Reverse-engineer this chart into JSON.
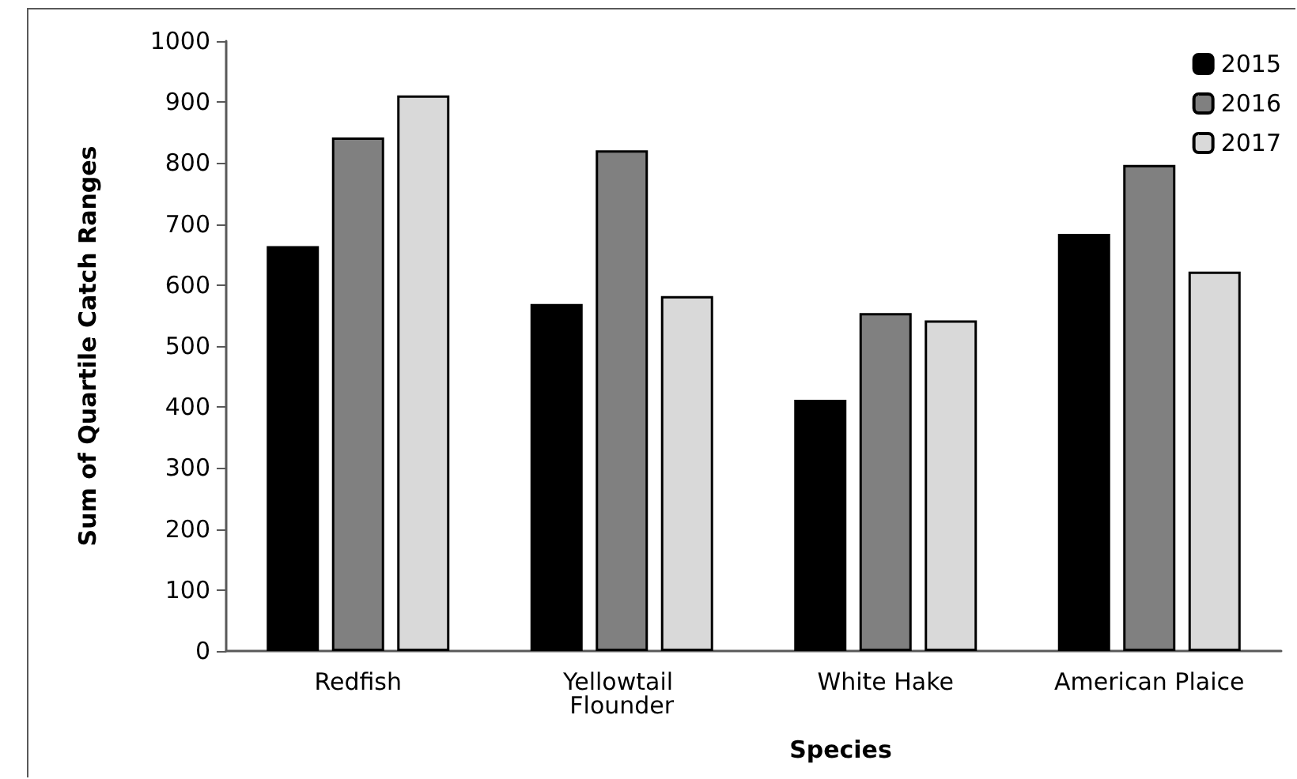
{
  "chart_data": {
    "type": "bar",
    "xlabel": "Species",
    "ylabel": "Sum of Quartile Catch Ranges",
    "categories": [
      "Redfish",
      "Yellowtail Flounder",
      "White Hake",
      "American Plaice"
    ],
    "series": [
      {
        "name": "2015",
        "color": "#000000",
        "values": [
          664,
          569,
          412,
          684
        ]
      },
      {
        "name": "2016",
        "color": "#808080",
        "values": [
          842,
          821,
          554,
          797
        ]
      },
      {
        "name": "2017",
        "color": "#d9d9d9",
        "values": [
          911,
          582,
          542,
          622
        ]
      }
    ],
    "ylim": [
      0,
      1000
    ],
    "yticks": [
      0,
      100,
      200,
      300,
      400,
      500,
      600,
      700,
      800,
      900,
      1000
    ],
    "grid": false,
    "legend": "top right"
  }
}
